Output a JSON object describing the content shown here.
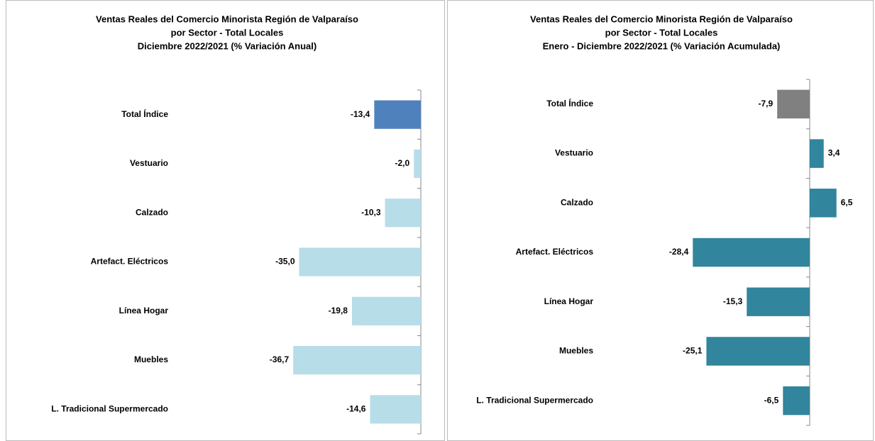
{
  "chart_data": [
    {
      "type": "bar",
      "title": [
        "Ventas Reales del Comercio Minorista Región de Valparaíso",
        "por Sector - Total Locales",
        "Diciembre 2022/2021 (% Variación Anual)"
      ],
      "categories": [
        "Total Índice",
        "Vestuario",
        "Calzado",
        "Artefact. Eléctricos",
        "Línea Hogar",
        "Muebles",
        "L. Tradicional Supermercado"
      ],
      "values": [
        -13.4,
        -2.0,
        -10.3,
        -35.0,
        -19.8,
        -36.7,
        -14.6
      ],
      "value_labels": [
        "-13,4",
        "-2,0",
        "-10,3",
        "-35,0",
        "-19,8",
        "-36,7",
        "-14,6"
      ],
      "colors": [
        "#4f81bd",
        "#b7dde8",
        "#b7dde8",
        "#b7dde8",
        "#b7dde8",
        "#b7dde8",
        "#b7dde8"
      ],
      "xlim": [
        -40,
        0
      ]
    },
    {
      "type": "bar",
      "title": [
        "Ventas Reales del Comercio Minorista Región de Valparaíso",
        "por Sector  - Total Locales",
        "Enero - Diciembre 2022/2021 (% Variación Acumulada)"
      ],
      "categories": [
        "Total Índice",
        "Vestuario",
        "Calzado",
        "Artefact. Eléctricos",
        "Línea Hogar",
        "Muebles",
        "L. Tradicional Supermercado"
      ],
      "values": [
        -7.9,
        3.4,
        6.5,
        -28.4,
        -15.3,
        -25.1,
        -6.5
      ],
      "value_labels": [
        "-7,9",
        "3,4",
        "6,5",
        "-28,4",
        "-15,3",
        "-25,1",
        "-6,5"
      ],
      "colors": [
        "#808080",
        "#31859c",
        "#31859c",
        "#31859c",
        "#31859c",
        "#31859c",
        "#31859c"
      ],
      "xlim": [
        -30,
        10
      ]
    }
  ]
}
